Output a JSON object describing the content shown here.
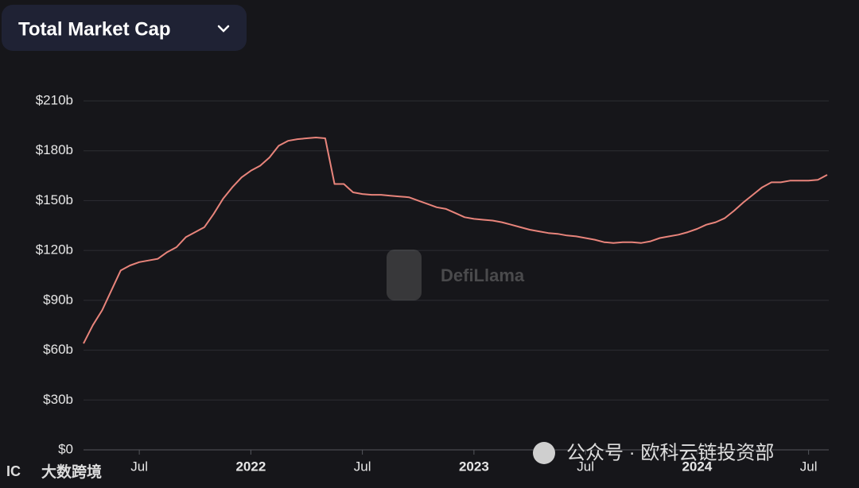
{
  "header": {
    "dropdown": "Total Market Cap"
  },
  "watermark": "DefiLlama",
  "overlays": [
    "公众号 · 欧科云链投资部",
    "大数跨境"
  ],
  "chart_data": {
    "type": "line",
    "color": "#e8847b",
    "grid": true,
    "categories": [
      null,
      null,
      null,
      null,
      null,
      null,
      "Jul",
      null,
      null,
      null,
      null,
      null,
      null,
      null,
      null,
      null,
      null,
      null,
      "2022",
      null,
      null,
      null,
      null,
      null,
      null,
      null,
      null,
      null,
      null,
      null,
      "Jul",
      null,
      null,
      null,
      null,
      null,
      null,
      null,
      null,
      null,
      null,
      null,
      "2023",
      null,
      null,
      null,
      null,
      null,
      null,
      null,
      null,
      null,
      null,
      null,
      "Jul",
      null,
      null,
      null,
      null,
      null,
      null,
      null,
      null,
      null,
      null,
      null,
      "2024",
      null,
      null,
      null,
      null,
      null,
      null,
      null,
      null,
      null,
      null,
      null,
      "Jul",
      null,
      null
    ],
    "values": [
      64,
      75,
      84,
      96,
      108,
      111,
      113,
      114,
      115,
      119,
      122,
      128,
      131,
      134,
      142,
      151,
      158,
      164,
      168,
      171,
      176,
      183,
      186,
      187,
      187.5,
      188,
      187.5,
      160,
      160,
      155,
      154,
      153.5,
      153.5,
      153,
      152.5,
      152,
      150,
      148,
      146,
      145,
      142.5,
      140,
      139,
      138.5,
      138,
      137,
      135.5,
      134,
      132.5,
      131.5,
      130.5,
      130,
      129,
      128.5,
      127.5,
      126.5,
      125,
      124.5,
      125,
      125,
      124.5,
      125.5,
      127.5,
      128.5,
      129.5,
      131,
      133,
      135.5,
      137,
      139.5,
      144,
      149,
      153.5,
      158,
      161,
      161,
      162,
      162,
      162,
      162.5,
      165.5
    ],
    "ylim": [
      0,
      210
    ],
    "yticks": [
      {
        "value": 0,
        "label": "$0"
      },
      {
        "value": 30,
        "label": "$30b"
      },
      {
        "value": 60,
        "label": "$60b"
      },
      {
        "value": 90,
        "label": "$90b"
      },
      {
        "value": 120,
        "label": "$120b"
      },
      {
        "value": 150,
        "label": "$150b"
      },
      {
        "value": 180,
        "label": "$180b"
      },
      {
        "value": 210,
        "label": "$210b"
      }
    ]
  }
}
